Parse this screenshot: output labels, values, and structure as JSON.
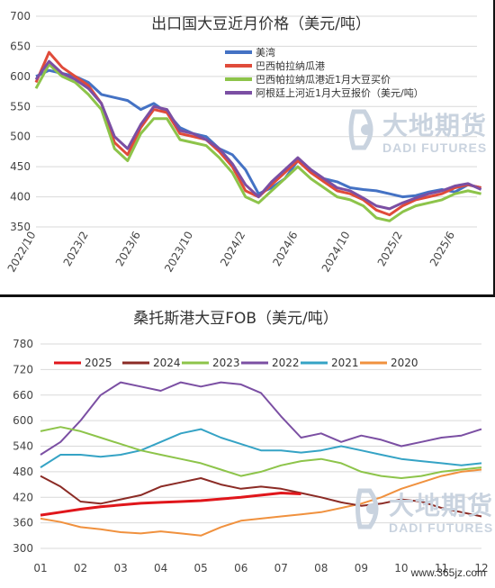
{
  "watermark": {
    "cn": "大地期货",
    "en": "DADI FUTURES"
  },
  "footer": {
    "site": "www.365jz.com"
  },
  "chart_data": [
    {
      "type": "line",
      "title": "出口国大豆近月价格（美元/吨）",
      "ylim": [
        350,
        700
      ],
      "yticks": [
        350,
        400,
        450,
        500,
        550,
        600,
        650,
        700
      ],
      "xticks": [
        "2022/10",
        "2023/2",
        "2023/6",
        "2023/10",
        "2024/2",
        "2024/6",
        "2024/10",
        "2025/2",
        "2025/6"
      ],
      "grid": "horizontal",
      "legend_position": "top-right",
      "series": [
        {
          "name": "美湾",
          "color": "#4472c4",
          "x": [
            "2022/10",
            "2022/11",
            "2022/12",
            "2023/1",
            "2023/2",
            "2023/3",
            "2023/4",
            "2023/5",
            "2023/6",
            "2023/7",
            "2023/8",
            "2023/9",
            "2023/10",
            "2023/11",
            "2023/12",
            "2024/1",
            "2024/2",
            "2024/3",
            "2024/4",
            "2024/5",
            "2024/6",
            "2024/7",
            "2024/8",
            "2024/9",
            "2024/10",
            "2024/11",
            "2024/12",
            "2025/1",
            "2025/2",
            "2025/3",
            "2025/4",
            "2025/5",
            "2025/6",
            "2025/7",
            "2025/8"
          ],
          "values": [
            600,
            610,
            605,
            600,
            590,
            570,
            565,
            560,
            545,
            555,
            540,
            515,
            505,
            500,
            480,
            470,
            445,
            405,
            415,
            430,
            460,
            445,
            430,
            425,
            415,
            412,
            410,
            405,
            400,
            402,
            408,
            412,
            408,
            420,
            415
          ]
        },
        {
          "name": "巴西帕拉纳瓜港",
          "color": "#e04b3a",
          "x": [
            "2022/10",
            "2022/11",
            "2022/12",
            "2023/1",
            "2023/2",
            "2023/3",
            "2023/4",
            "2023/5",
            "2023/6",
            "2023/7",
            "2023/8",
            "2023/9",
            "2023/10",
            "2023/11",
            "2023/12",
            "2024/1",
            "2024/2",
            "2024/3",
            "2024/4",
            "2024/5",
            "2024/6",
            "2024/7",
            "2024/8",
            "2024/9",
            "2024/10",
            "2024/11",
            "2024/12",
            "2025/1",
            "2025/2",
            "2025/3",
            "2025/4",
            "2025/5",
            "2025/6",
            "2025/7",
            "2025/8"
          ],
          "values": [
            590,
            640,
            615,
            600,
            585,
            555,
            490,
            470,
            515,
            545,
            540,
            505,
            500,
            495,
            475,
            450,
            410,
            400,
            420,
            440,
            460,
            440,
            425,
            410,
            405,
            395,
            378,
            370,
            385,
            395,
            400,
            405,
            415,
            420,
            415
          ]
        },
        {
          "name": "巴西帕拉纳瓜港近1月大豆买价",
          "color": "#8dc44a",
          "x": [
            "2022/10",
            "2022/11",
            "2022/12",
            "2023/1",
            "2023/2",
            "2023/3",
            "2023/4",
            "2023/5",
            "2023/6",
            "2023/7",
            "2023/8",
            "2023/9",
            "2023/10",
            "2023/11",
            "2023/12",
            "2024/1",
            "2024/2",
            "2024/3",
            "2024/4",
            "2024/5",
            "2024/6",
            "2024/7",
            "2024/8",
            "2024/9",
            "2024/10",
            "2024/11",
            "2024/12",
            "2025/1",
            "2025/2",
            "2025/3",
            "2025/4",
            "2025/5",
            "2025/6",
            "2025/7",
            "2025/8"
          ],
          "values": [
            580,
            620,
            600,
            590,
            570,
            545,
            480,
            460,
            505,
            530,
            530,
            495,
            490,
            485,
            465,
            440,
            400,
            390,
            410,
            430,
            450,
            430,
            415,
            400,
            395,
            385,
            365,
            360,
            375,
            385,
            390,
            395,
            405,
            410,
            405
          ]
        },
        {
          "name": "阿根廷上河近1月大豆报价（美元/吨）",
          "color": "#7b4fa3",
          "x": [
            "2022/10",
            "2022/11",
            "2022/12",
            "2023/1",
            "2023/2",
            "2023/3",
            "2023/4",
            "2023/5",
            "2023/6",
            "2023/7",
            "2023/8",
            "2023/9",
            "2023/10",
            "2023/11",
            "2023/12",
            "2024/1",
            "2024/2",
            "2024/3",
            "2024/4",
            "2024/5",
            "2024/6",
            "2024/7",
            "2024/8",
            "2024/9",
            "2024/10",
            "2024/11",
            "2024/12",
            "2025/1",
            "2025/2",
            "2025/3",
            "2025/4",
            "2025/5",
            "2025/6",
            "2025/7",
            "2025/8"
          ],
          "values": [
            595,
            625,
            605,
            595,
            580,
            555,
            500,
            480,
            520,
            550,
            545,
            510,
            505,
            495,
            480,
            455,
            420,
            400,
            425,
            445,
            465,
            445,
            430,
            415,
            410,
            398,
            385,
            380,
            390,
            398,
            405,
            410,
            418,
            422,
            412
          ]
        }
      ]
    },
    {
      "type": "line",
      "title": "桑托斯港大豆FOB（美元/吨）",
      "ylim": [
        300,
        780
      ],
      "yticks": [
        300,
        360,
        420,
        480,
        540,
        600,
        660,
        720,
        780
      ],
      "xticks": [
        "01",
        "02",
        "03",
        "04",
        "05",
        "06",
        "07",
        "08",
        "09",
        "10",
        "11",
        "12"
      ],
      "grid": "horizontal",
      "legend_position": "top",
      "series": [
        {
          "name": "2025",
          "color": "#e0161b",
          "x": [
            1,
            1.5,
            2,
            2.5,
            3,
            3.5,
            4,
            4.5,
            5,
            5.5,
            6,
            6.5,
            7,
            7.5
          ],
          "values": [
            378,
            385,
            392,
            398,
            402,
            406,
            408,
            410,
            412,
            416,
            420,
            425,
            430,
            428
          ]
        },
        {
          "name": "2024",
          "color": "#8b2b25",
          "x": [
            1,
            1.5,
            2,
            2.5,
            3,
            3.5,
            4,
            4.5,
            5,
            5.5,
            6,
            6.5,
            7,
            7.5,
            8,
            8.5,
            9,
            9.5,
            10,
            10.5,
            11,
            11.5,
            12
          ],
          "values": [
            470,
            445,
            410,
            405,
            415,
            425,
            445,
            455,
            465,
            450,
            440,
            445,
            440,
            430,
            420,
            408,
            400,
            405,
            415,
            410,
            395,
            385,
            375
          ]
        },
        {
          "name": "2023",
          "color": "#8dc44a",
          "x": [
            1,
            1.5,
            2,
            2.5,
            3,
            3.5,
            4,
            4.5,
            5,
            5.5,
            6,
            6.5,
            7,
            7.5,
            8,
            8.5,
            9,
            9.5,
            10,
            10.5,
            11,
            11.5,
            12
          ],
          "values": [
            575,
            585,
            575,
            560,
            545,
            530,
            520,
            510,
            500,
            485,
            470,
            480,
            495,
            505,
            510,
            500,
            480,
            470,
            465,
            470,
            480,
            485,
            490
          ]
        },
        {
          "name": "2022",
          "color": "#7b4fa3",
          "x": [
            1,
            1.5,
            2,
            2.5,
            3,
            3.5,
            4,
            4.5,
            5,
            5.5,
            6,
            6.5,
            7,
            7.5,
            8,
            8.5,
            9,
            9.5,
            10,
            10.5,
            11,
            11.5,
            12
          ],
          "values": [
            520,
            550,
            600,
            660,
            690,
            680,
            670,
            690,
            680,
            690,
            685,
            665,
            610,
            560,
            570,
            550,
            565,
            555,
            540,
            550,
            560,
            565,
            580
          ]
        },
        {
          "name": "2021",
          "color": "#35a3c5",
          "x": [
            1,
            1.5,
            2,
            2.5,
            3,
            3.5,
            4,
            4.5,
            5,
            5.5,
            6,
            6.5,
            7,
            7.5,
            8,
            8.5,
            9,
            9.5,
            10,
            10.5,
            11,
            11.5,
            12
          ],
          "values": [
            490,
            520,
            520,
            515,
            520,
            530,
            550,
            570,
            580,
            560,
            545,
            530,
            530,
            525,
            530,
            540,
            530,
            520,
            510,
            505,
            500,
            495,
            500
          ]
        },
        {
          "name": "2020",
          "color": "#f0913e",
          "x": [
            1,
            1.5,
            2,
            2.5,
            3,
            3.5,
            4,
            4.5,
            5,
            5.5,
            6,
            6.5,
            7,
            7.5,
            8,
            8.5,
            9,
            9.5,
            10,
            10.5,
            11,
            11.5,
            12
          ],
          "values": [
            370,
            362,
            350,
            345,
            338,
            335,
            340,
            335,
            330,
            350,
            365,
            370,
            375,
            380,
            385,
            395,
            405,
            420,
            440,
            455,
            470,
            480,
            485
          ]
        }
      ]
    }
  ]
}
